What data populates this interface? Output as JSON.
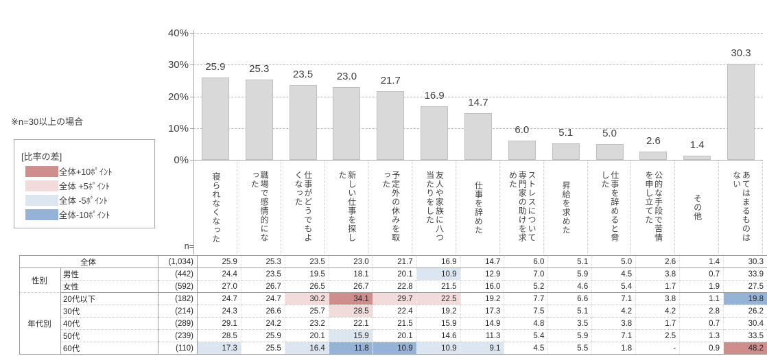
{
  "note": "※n=30以上の場合",
  "legend": {
    "title": "[比率の差]",
    "items": [
      {
        "name": "plus10",
        "label": "全体+10ﾎﾟｲﾝﾄ",
        "color": "#cf8e8c"
      },
      {
        "name": "plus5",
        "label": "全体 +5ﾎﾟｲﾝﾄ",
        "color": "#f2dcdb"
      },
      {
        "name": "minus5",
        "label": "全体 -5ﾎﾟｲﾝﾄ",
        "color": "#dce6f1"
      },
      {
        "name": "minus10",
        "label": "全体-10ﾎﾟｲﾝﾄ",
        "color": "#95b3d7"
      }
    ]
  },
  "chart_data": {
    "type": "bar",
    "title": "",
    "categories": [
      "寝られなくなった",
      "職場で感情的になった",
      "仕事がどうでもよくなった",
      "新しい仕事を探した",
      "予定外の休みを取った",
      "友人や家族に八つ当たりをした",
      "仕事を辞めた",
      "ストレスについて専門家の助けを求めた",
      "昇給を求めた",
      "仕事を辞めると脅した",
      "公的な手段で苦情を申し立てた",
      "その他",
      "あてはまるものはない"
    ],
    "values": [
      25.9,
      25.3,
      23.5,
      23.0,
      21.7,
      16.9,
      14.7,
      6.0,
      5.1,
      5.0,
      2.6,
      1.4,
      30.3
    ],
    "xlabel": "",
    "ylabel": "",
    "ylim": [
      0,
      40
    ],
    "y_ticks": [
      {
        "label": "40%",
        "value": 40
      },
      {
        "label": "30%",
        "value": 30
      },
      {
        "label": "20%",
        "value": 20
      },
      {
        "label": "10%",
        "value": 10
      },
      {
        "label": "0%",
        "value": 0
      }
    ],
    "grid": "dashed-horizontal",
    "bar_color": "#d9d9d9",
    "legend_position": "none"
  },
  "table": {
    "n_header": "n=",
    "rows": [
      {
        "group": "",
        "group_rowspan": 0,
        "label": "全体",
        "overall": true,
        "n": "(1,034)",
        "values": [
          "25.9",
          "25.3",
          "23.5",
          "23.0",
          "21.7",
          "16.9",
          "14.7",
          "6.0",
          "5.1",
          "5.0",
          "2.6",
          "1.4",
          "30.3"
        ]
      },
      {
        "group": "性別",
        "group_rowspan": 2,
        "label": "男性",
        "overall": false,
        "n": "(442)",
        "values": [
          "24.4",
          "23.5",
          "19.5",
          "18.1",
          "20.1",
          "10.9",
          "12.9",
          "7.0",
          "5.9",
          "4.5",
          "3.8",
          "0.7",
          "33.9"
        ]
      },
      {
        "group": null,
        "group_rowspan": 0,
        "label": "女性",
        "overall": false,
        "n": "(592)",
        "values": [
          "27.0",
          "26.7",
          "26.5",
          "26.7",
          "22.8",
          "21.5",
          "16.0",
          "5.2",
          "4.6",
          "5.4",
          "1.7",
          "1.9",
          "27.5"
        ]
      },
      {
        "group": "年代別",
        "group_rowspan": 5,
        "label": "20代以下",
        "overall": false,
        "n": "(182)",
        "values": [
          "24.7",
          "24.7",
          "30.2",
          "34.1",
          "29.7",
          "22.5",
          "19.2",
          "7.7",
          "6.6",
          "7.1",
          "3.8",
          "1.1",
          "19.8"
        ]
      },
      {
        "group": null,
        "group_rowspan": 0,
        "label": "30代",
        "overall": false,
        "n": "(214)",
        "values": [
          "24.3",
          "26.6",
          "25.7",
          "28.5",
          "22.4",
          "19.2",
          "17.3",
          "7.5",
          "5.1",
          "4.2",
          "4.2",
          "2.8",
          "26.2"
        ]
      },
      {
        "group": null,
        "group_rowspan": 0,
        "label": "40代",
        "overall": false,
        "n": "(289)",
        "values": [
          "29.1",
          "24.2",
          "23.2",
          "22.1",
          "21.5",
          "15.9",
          "14.9",
          "4.8",
          "3.5",
          "3.8",
          "1.7",
          "0.7",
          "30.4"
        ]
      },
      {
        "group": null,
        "group_rowspan": 0,
        "label": "50代",
        "overall": false,
        "n": "(239)",
        "values": [
          "28.5",
          "25.9",
          "20.1",
          "15.9",
          "20.1",
          "14.6",
          "11.3",
          "5.4",
          "5.9",
          "7.1",
          "2.5",
          "1.3",
          "33.5"
        ]
      },
      {
        "group": null,
        "group_rowspan": 0,
        "label": "60代",
        "overall": false,
        "n": "(110)",
        "values": [
          "17.3",
          "25.5",
          "16.4",
          "11.8",
          "10.9",
          "10.9",
          "9.1",
          "4.5",
          "5.5",
          "1.8",
          "-",
          "0.9",
          "48.2"
        ]
      }
    ],
    "highlight_thresholds": {
      "plus10": 10,
      "plus5": 5,
      "minus5": -5,
      "minus10": -10
    }
  },
  "colors": {
    "plus10": "#cf8e8c",
    "plus5": "#f2dcdb",
    "minus5": "#dce6f1",
    "minus10": "#95b3d7",
    "bar_fill": "#d9d9d9",
    "bar_border": "#bfbfbf",
    "grid": "#b7b7b7",
    "axis": "#a6a6a6"
  }
}
